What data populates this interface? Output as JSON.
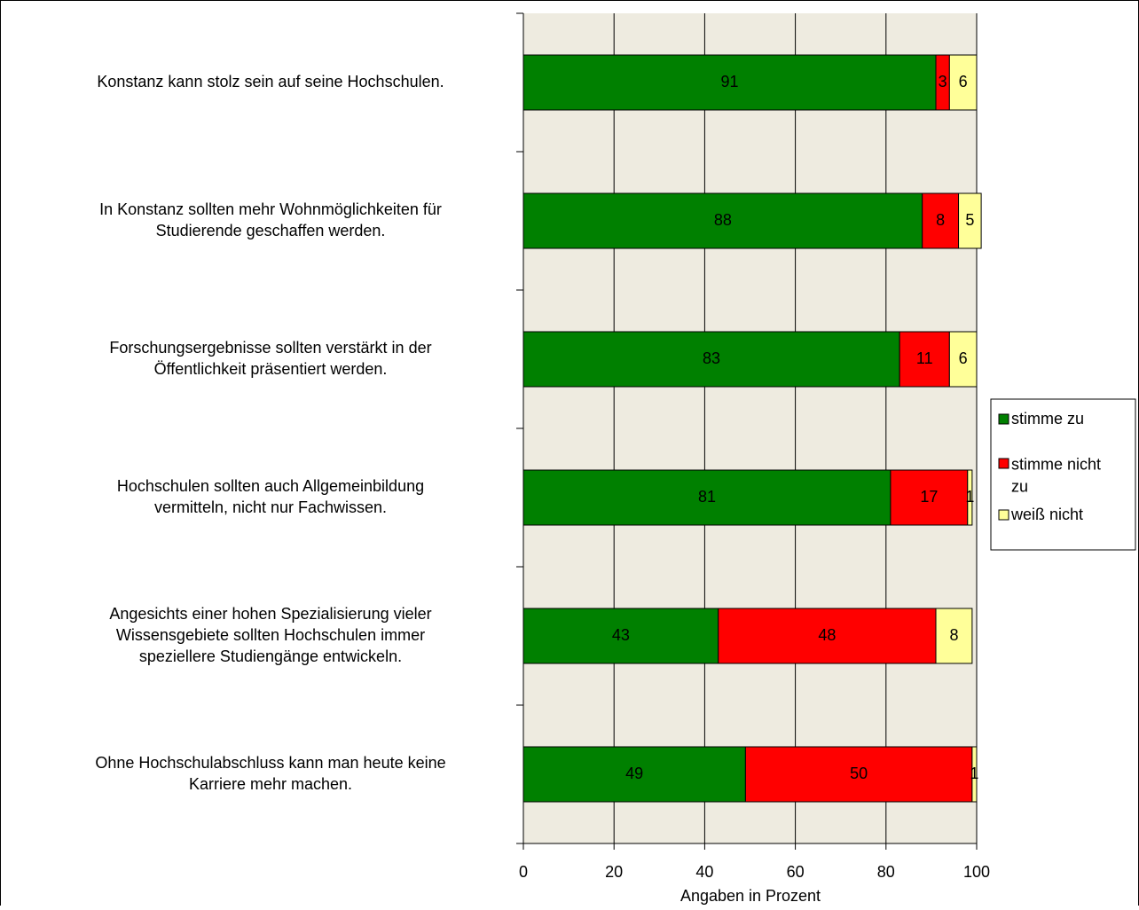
{
  "chart_data": {
    "type": "stacked-bar-horizontal",
    "categories": [
      "Konstanz kann stolz sein auf seine Hochschulen.",
      "In Konstanz sollten mehr Wohnmöglichkeiten für\nStudierende geschaffen werden.",
      "Forschungsergebnisse sollten verstärkt in der\nÖffentlichkeit präsentiert werden.",
      "Hochschulen sollten auch Allgemeinbildung\nvermitteln, nicht nur Fachwissen.",
      "Angesichts einer hohen Spezialisierung vieler\nWissensgebiete sollten Hochschulen immer\nspeziellere Studiengänge entwickeln.",
      "Ohne Hochschulabschluss kann man heute keine\nKarriere mehr machen."
    ],
    "series": [
      {
        "name": "stimme zu",
        "color": "#008000",
        "values": [
          91,
          88,
          83,
          81,
          43,
          49
        ]
      },
      {
        "name": "stimme nicht\nzu",
        "color": "#ff0000",
        "values": [
          3,
          8,
          11,
          17,
          48,
          50
        ]
      },
      {
        "name": "weiß nicht",
        "color": "#ffff99",
        "values": [
          6,
          5,
          6,
          1,
          8,
          1
        ]
      }
    ],
    "xlabel": "Angaben in Prozent",
    "xlim": [
      0,
      100
    ],
    "xticks": [
      0,
      20,
      40,
      60,
      80,
      100
    ],
    "grid": true,
    "legend": "right",
    "plot_background": "#eeebe0"
  }
}
